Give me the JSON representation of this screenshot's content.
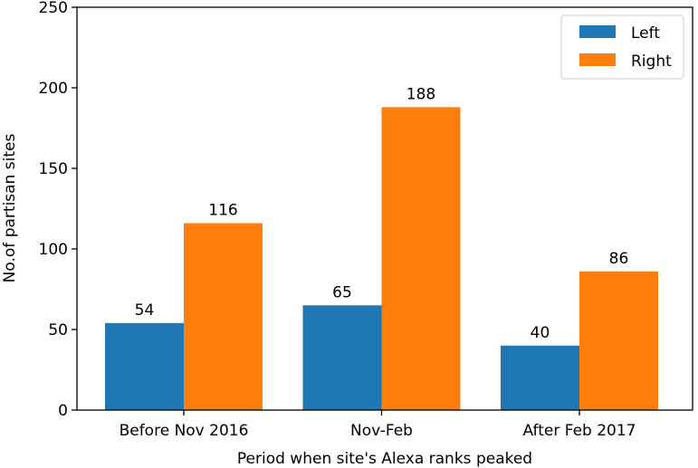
{
  "chart_data": {
    "type": "bar",
    "title": "",
    "xlabel": "Period when site's Alexa ranks peaked",
    "ylabel": "No.of partisan sites",
    "categories": [
      "Before Nov 2016",
      "Nov-Feb",
      "After Feb 2017"
    ],
    "series": [
      {
        "name": "Left",
        "values": [
          54,
          65,
          40
        ],
        "color": "#1f77b4"
      },
      {
        "name": "Right",
        "values": [
          116,
          188,
          86
        ],
        "color": "#ff7f0e"
      }
    ],
    "ylim": [
      0,
      250
    ],
    "yticks": [
      0,
      50,
      100,
      150,
      200,
      250
    ],
    "grid": false,
    "legend_position": "top-right",
    "data_labels": true
  }
}
